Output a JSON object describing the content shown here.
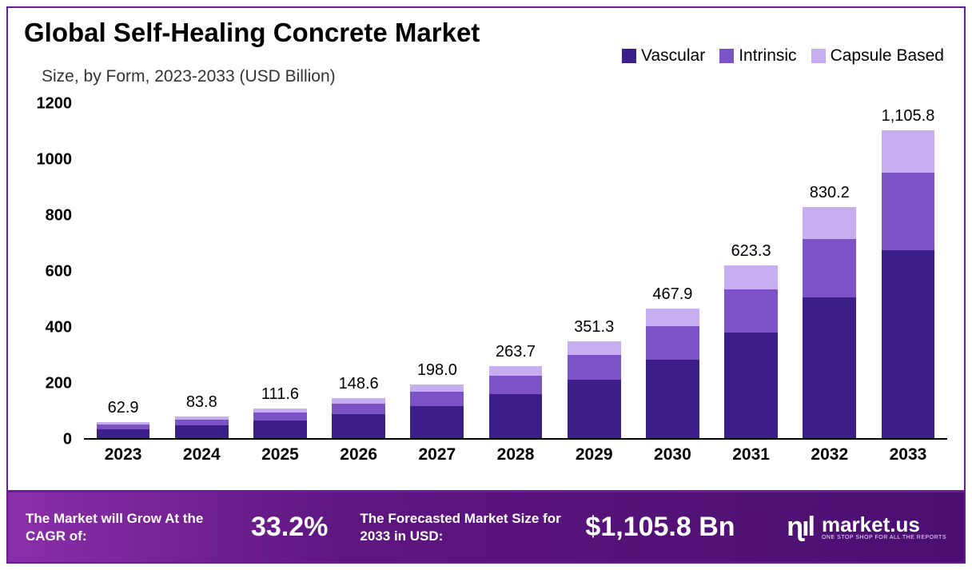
{
  "title": "Global Self-Healing Concrete Market",
  "subtitle": "Size, by Form, 2023-2033 (USD Billion)",
  "chart": {
    "type": "stacked-bar",
    "ymax": 1200,
    "ytick_step": 200,
    "yticks": [
      0,
      200,
      400,
      600,
      800,
      1000,
      1200
    ],
    "categories": [
      "2023",
      "2024",
      "2025",
      "2026",
      "2027",
      "2028",
      "2029",
      "2030",
      "2031",
      "2032",
      "2033"
    ],
    "totals": [
      62.9,
      83.8,
      111.6,
      148.6,
      198.0,
      263.7,
      351.3,
      467.9,
      623.3,
      830.2,
      1105.8
    ],
    "total_labels": [
      "62.9",
      "83.8",
      "111.6",
      "148.6",
      "198.0",
      "263.7",
      "351.3",
      "467.9",
      "623.3",
      "830.2",
      "1,105.8"
    ],
    "series": [
      {
        "name": "Vascular",
        "color": "#3b1e87",
        "values": [
          38.5,
          51.3,
          68.4,
          91.0,
          121.2,
          161.5,
          215.1,
          286.6,
          381.7,
          508.5,
          677.2
        ]
      },
      {
        "name": "Intrinsic",
        "color": "#7b53c7",
        "values": [
          15.8,
          21.1,
          28.1,
          37.4,
          49.8,
          66.4,
          88.4,
          117.8,
          156.9,
          209.0,
          278.4
        ]
      },
      {
        "name": "Capsule Based",
        "color": "#c7aef0",
        "values": [
          8.6,
          11.4,
          15.1,
          20.2,
          27.0,
          35.8,
          47.8,
          63.5,
          84.7,
          112.7,
          150.2
        ]
      }
    ],
    "bar_width_pct": 68,
    "title_fontsize": 33,
    "label_fontsize": 21,
    "tick_fontsize": 20,
    "background_color": "#ffffff",
    "axis_color": "#000000"
  },
  "legend": {
    "items": [
      "Vascular",
      "Intrinsic",
      "Capsule Based"
    ],
    "colors": [
      "#3b1e87",
      "#7b53c7",
      "#c7aef0"
    ]
  },
  "footer": {
    "cagr_label": "The Market will Grow At the CAGR of:",
    "cagr_value": "33.2%",
    "forecast_label": "The Forecasted Market Size for 2033 in USD:",
    "forecast_value": "$1,105.8 Bn",
    "brand_name": "market.us",
    "brand_tagline": "ONE STOP SHOP FOR ALL THE REPORTS",
    "gradient_from": "#8a2fa8",
    "gradient_to": "#4a0f70"
  }
}
